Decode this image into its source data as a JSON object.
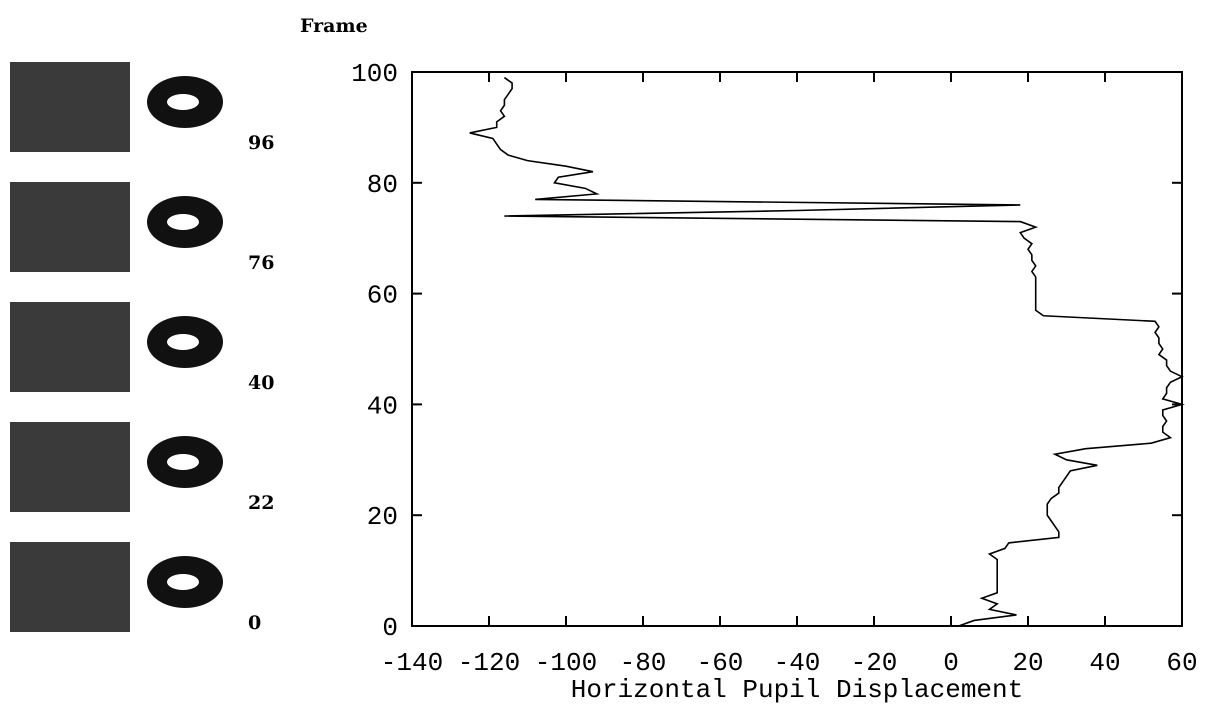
{
  "chart_data": {
    "type": "line",
    "y_label": "Frame",
    "x_label": "Horizontal Pupil Displacement",
    "thumbnail_labels": [
      "96",
      "76",
      "40",
      "22",
      "0"
    ],
    "xlim": [
      -140,
      60
    ],
    "xticks": [
      -140,
      -120,
      -100,
      -80,
      -60,
      -40,
      -20,
      0,
      20,
      40,
      60
    ],
    "ylim": [
      0,
      100
    ],
    "yticks": [
      0,
      20,
      40,
      60,
      80,
      100
    ],
    "color": "#000000",
    "series": [
      {
        "x": [
          2,
          6,
          17,
          10,
          12,
          8,
          12,
          12,
          12,
          12,
          12,
          12,
          12,
          10,
          14,
          15,
          28,
          28,
          27,
          26,
          25,
          25,
          25,
          26,
          28,
          28,
          29,
          30,
          31,
          38,
          30,
          27,
          35,
          52,
          57,
          55,
          55,
          56,
          55,
          55,
          60,
          55,
          56,
          56,
          57,
          60,
          57,
          56,
          56,
          54,
          55,
          54,
          54,
          53,
          54,
          53,
          24,
          22,
          22,
          22,
          22,
          22,
          22,
          22,
          21,
          22,
          21,
          21,
          20,
          21,
          19,
          18,
          22,
          18,
          -116,
          -40,
          18,
          -108,
          -92,
          -95,
          -103,
          -102,
          -93,
          -100,
          -110,
          -115,
          -117,
          -118,
          -119,
          -125,
          -118,
          -118,
          -116,
          -117,
          -116,
          -116,
          -115,
          -114,
          -114,
          -116
        ],
        "y": [
          0,
          1,
          2,
          3,
          4,
          5,
          6,
          7,
          8,
          9,
          10,
          11,
          12,
          13,
          14,
          15,
          16,
          17,
          18,
          19,
          20,
          21,
          22,
          23,
          24,
          25,
          26,
          27,
          28,
          29,
          30,
          31,
          32,
          33,
          34,
          35,
          36,
          37,
          38,
          39,
          40,
          41,
          42,
          43,
          44,
          45,
          46,
          47,
          48,
          49,
          50,
          51,
          52,
          53,
          54,
          55,
          56,
          57,
          58,
          59,
          60,
          61,
          62,
          63,
          64,
          65,
          66,
          67,
          68,
          69,
          70,
          71,
          72,
          73,
          74,
          75,
          76,
          77,
          78,
          79,
          80,
          81,
          82,
          83,
          84,
          85,
          86,
          87,
          88,
          89,
          90,
          91,
          92,
          93,
          94,
          95,
          96,
          97,
          98,
          99
        ]
      }
    ]
  }
}
